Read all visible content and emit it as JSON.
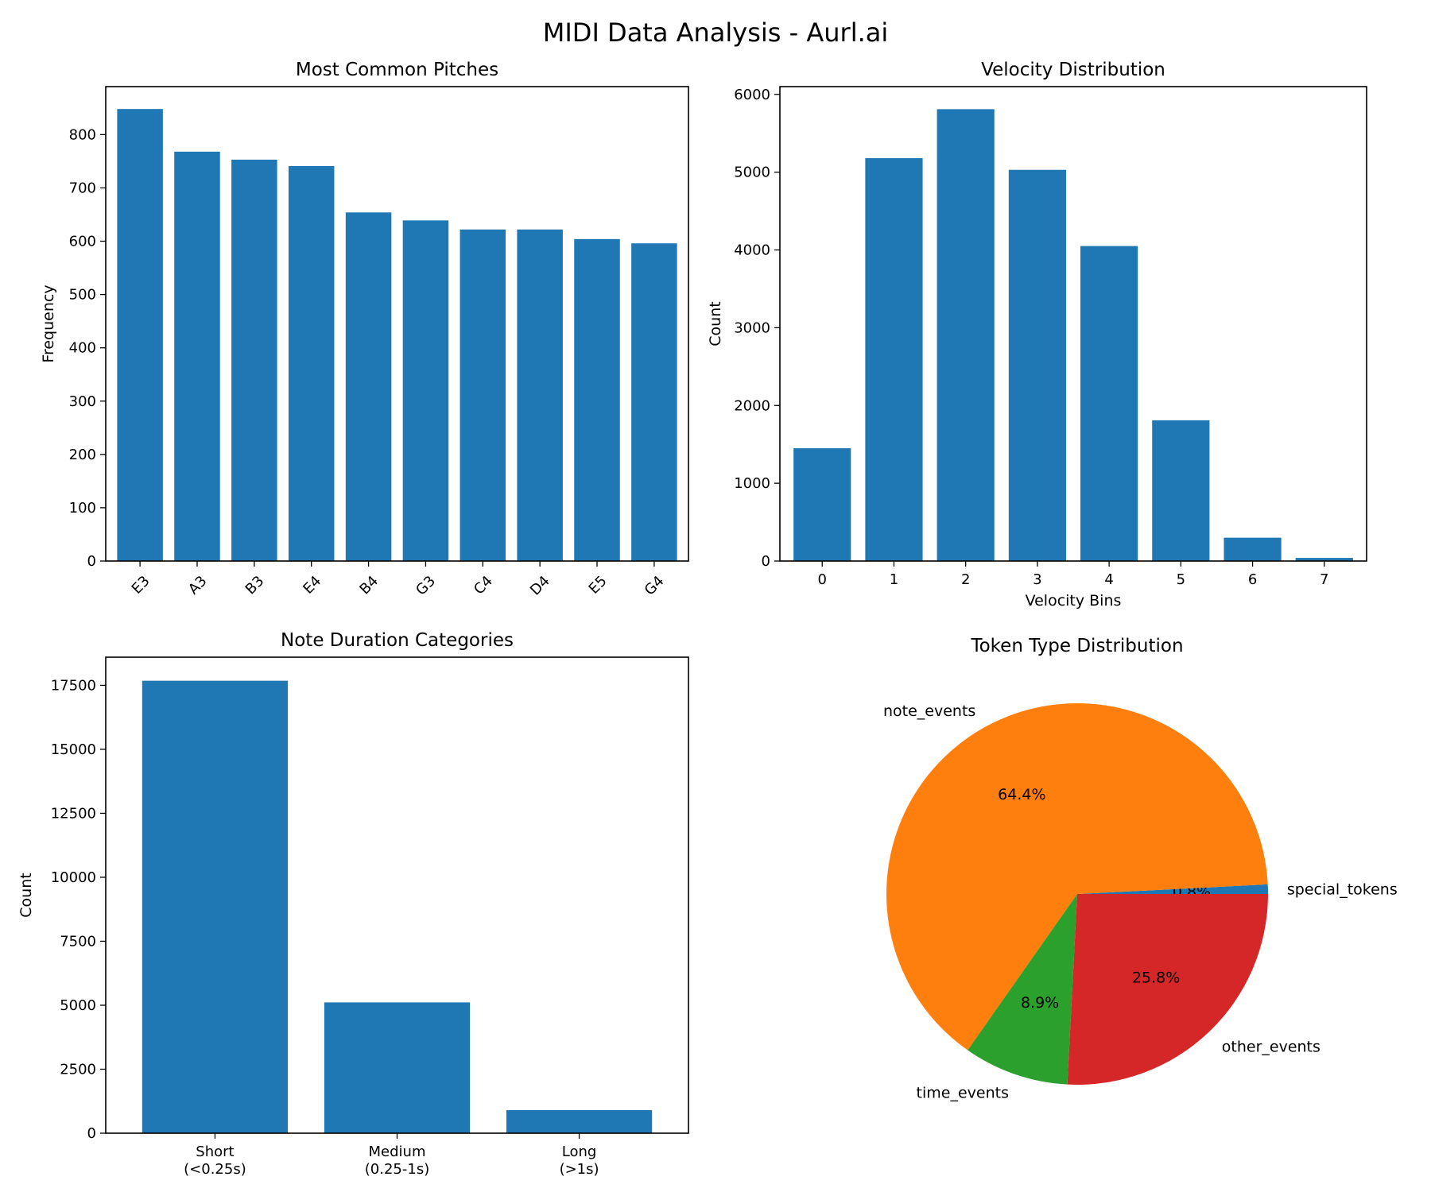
{
  "figure_title": "MIDI Data Analysis - Aurl.ai",
  "chart_data": [
    {
      "type": "bar",
      "title": "Most Common Pitches",
      "xlabel": "",
      "ylabel": "Frequency",
      "categories": [
        "E3",
        "A3",
        "B3",
        "E4",
        "B4",
        "G3",
        "C4",
        "D4",
        "E5",
        "G4"
      ],
      "values": [
        848,
        768,
        753,
        741,
        654,
        639,
        622,
        622,
        604,
        596
      ],
      "ylim": [
        0,
        890
      ],
      "yticks": [
        0,
        100,
        200,
        300,
        400,
        500,
        600,
        700,
        800
      ],
      "xtick_rotation": 45,
      "color": "#1f77b4",
      "grid": false
    },
    {
      "type": "bar",
      "title": "Velocity Distribution",
      "xlabel": "Velocity Bins",
      "ylabel": "Count",
      "categories": [
        "0",
        "1",
        "2",
        "3",
        "4",
        "5",
        "6",
        "7"
      ],
      "values": [
        1450,
        5180,
        5810,
        5030,
        4050,
        1810,
        300,
        40
      ],
      "ylim": [
        0,
        6100
      ],
      "yticks": [
        0,
        1000,
        2000,
        3000,
        4000,
        5000,
        6000
      ],
      "color": "#1f77b4",
      "grid": false
    },
    {
      "type": "bar",
      "title": "Note Duration Categories",
      "xlabel": "",
      "ylabel": "Count",
      "categories": [
        "Short\n(<0.25s)",
        "Medium\n(0.25-1s)",
        "Long\n(>1s)"
      ],
      "values": [
        17680,
        5110,
        900
      ],
      "ylim": [
        0,
        18600
      ],
      "yticks": [
        0,
        2500,
        5000,
        7500,
        10000,
        12500,
        15000,
        17500
      ],
      "color": "#1f77b4",
      "grid": false
    },
    {
      "type": "pie",
      "title": "Token Type Distribution",
      "slices": [
        {
          "label": "special_tokens",
          "value": 0.8,
          "pct_label": "0.8%",
          "color": "#1f77b4"
        },
        {
          "label": "note_events",
          "value": 64.4,
          "pct_label": "64.4%",
          "color": "#ff7f0e"
        },
        {
          "label": "time_events",
          "value": 8.9,
          "pct_label": "8.9%",
          "color": "#2ca02c"
        },
        {
          "label": "other_events",
          "value": 25.8,
          "pct_label": "25.8%",
          "color": "#d62728"
        }
      ]
    }
  ]
}
